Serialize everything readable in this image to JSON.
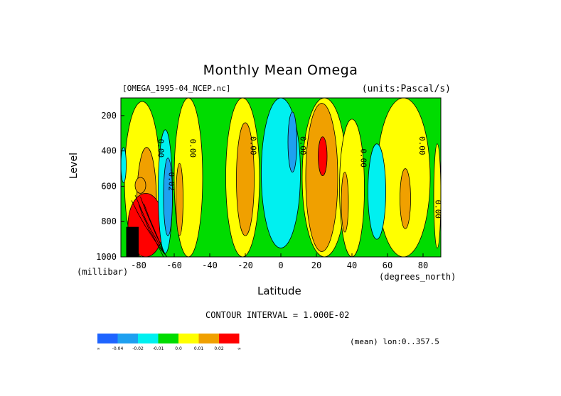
{
  "header": {
    "title": "Monthly Mean Omega",
    "file_label": "[OMEGA_1995-04_NCEP.nc]",
    "units_label": "(units:Pascal/s)"
  },
  "axes": {
    "y_title": "Level",
    "y_unit": "(millibar)",
    "x_title": "Latitude",
    "x_unit": "(degrees_north)"
  },
  "footer": {
    "contour_interval": "CONTOUR INTERVAL = 1.000E-02",
    "mean_label": "(mean) lon:0..357.5"
  },
  "chart_data": {
    "type": "heatmap",
    "title": "Monthly Mean Omega",
    "xlabel": "Latitude",
    "ylabel": "Level",
    "xlim": [
      -90,
      90
    ],
    "ylim": [
      1000,
      100
    ],
    "x_ticks": [
      -80,
      -60,
      -40,
      -20,
      0,
      20,
      40,
      60,
      80
    ],
    "y_ticks": [
      200,
      400,
      600,
      800,
      1000
    ],
    "x_tick_labels": [
      "-80",
      "-60",
      "-40",
      "-20",
      "0",
      "20",
      "40",
      "60",
      "80"
    ],
    "y_tick_labels": [
      "200",
      "400",
      "600",
      "800",
      "1000"
    ],
    "contour_labels": [
      {
        "text": "0.00",
        "x": -69,
        "y": 385
      },
      {
        "text": "0.00",
        "x": -51,
        "y": 385
      },
      {
        "text": "-0.02",
        "x": -63,
        "y": 560
      },
      {
        "text": "0.00",
        "x": -17,
        "y": 370
      },
      {
        "text": "0.00",
        "x": 11,
        "y": 370
      },
      {
        "text": "0.00",
        "x": 45,
        "y": 440
      },
      {
        "text": "0.00",
        "x": 78,
        "y": 370
      },
      {
        "text": "0.00",
        "x": 87,
        "y": 730
      }
    ],
    "colorbar": {
      "colors": [
        "#1e64ff",
        "#1ea0f0",
        "#00f0f0",
        "#00dc00",
        "#ffff00",
        "#f0a000",
        "#ff0000"
      ],
      "tick_labels": [
        "-∞",
        "-0.04",
        "-0.02",
        "-0.01",
        "0.0",
        "0.01",
        "0.02",
        "∞"
      ]
    },
    "regions": [
      {
        "level": "neutral-band",
        "color": "#00dc00",
        "x": [
          -90,
          90
        ],
        "y": [
          100,
          1000
        ]
      },
      {
        "level": "positive",
        "color": "#ffff00",
        "x": [
          -88,
          -68
        ],
        "y": [
          120,
          1000
        ]
      },
      {
        "level": "positive",
        "color": "#ffff00",
        "x": [
          -60,
          -44
        ],
        "y": [
          100,
          1000
        ]
      },
      {
        "level": "positive",
        "color": "#ffff00",
        "x": [
          -31,
          -12
        ],
        "y": [
          100,
          1000
        ]
      },
      {
        "level": "positive",
        "color": "#ffff00",
        "x": [
          12,
          37
        ],
        "y": [
          100,
          1000
        ]
      },
      {
        "level": "positive",
        "color": "#ffff00",
        "x": [
          33,
          47
        ],
        "y": [
          220,
          1000
        ]
      },
      {
        "level": "positive",
        "color": "#ffff00",
        "x": [
          54,
          84
        ],
        "y": [
          100,
          1000
        ]
      },
      {
        "level": "positive",
        "color": "#ffff00",
        "x": [
          86,
          90
        ],
        "y": [
          360,
          950
        ]
      },
      {
        "level": "0.01",
        "color": "#f0a000",
        "x": [
          -25,
          -15
        ],
        "y": [
          240,
          880
        ]
      },
      {
        "level": "0.01",
        "color": "#f0a000",
        "x": [
          -59,
          -55
        ],
        "y": [
          470,
          880
        ]
      },
      {
        "level": "0.01",
        "color": "#f0a000",
        "x": [
          14,
          32
        ],
        "y": [
          130,
          970
        ]
      },
      {
        "level": "0.01",
        "color": "#f0a000",
        "x": [
          -81,
          -70
        ],
        "y": [
          380,
          1000
        ]
      },
      {
        "level": "0.01",
        "color": "#f0a000",
        "x": [
          34,
          38
        ],
        "y": [
          520,
          860
        ]
      },
      {
        "level": "0.01",
        "color": "#f0a000",
        "x": [
          67,
          73
        ],
        "y": [
          500,
          840
        ]
      },
      {
        "level": "0.01",
        "color": "#f0a000",
        "x": [
          -82,
          -76
        ],
        "y": [
          550,
          640
        ]
      },
      {
        "level": "0.02",
        "color": "#ff0000",
        "x": [
          21,
          26
        ],
        "y": [
          320,
          540
        ]
      },
      {
        "level": "0.02",
        "color": "#ff0000",
        "x": [
          -86,
          -66
        ],
        "y": [
          640,
          1000
        ]
      },
      {
        "level": "-0.01",
        "color": "#00f0f0",
        "x": [
          -11,
          11
        ],
        "y": [
          100,
          950
        ]
      },
      {
        "level": "-0.01",
        "color": "#00f0f0",
        "x": [
          -69,
          -61
        ],
        "y": [
          280,
          980
        ]
      },
      {
        "level": "-0.01",
        "color": "#00f0f0",
        "x": [
          49,
          59
        ],
        "y": [
          360,
          900
        ]
      },
      {
        "level": "-0.02",
        "color": "#1ea0f0",
        "x": [
          4,
          9
        ],
        "y": [
          180,
          520
        ]
      },
      {
        "level": "-0.02",
        "color": "#1ea0f0",
        "x": [
          -66,
          -61
        ],
        "y": [
          440,
          880
        ]
      },
      {
        "level": "-0.01",
        "color": "#00f0f0",
        "x": [
          -90,
          -87
        ],
        "y": [
          380,
          580
        ]
      },
      {
        "level": "missing",
        "color": "#000000",
        "x": [
          -87,
          -80
        ],
        "y": [
          830,
          1000
        ]
      }
    ],
    "contour_lines": [
      {
        "x": [
          -80,
          -78,
          -76,
          -74,
          -72,
          -70,
          -68,
          -66
        ],
        "y": [
          700,
          760,
          800,
          850,
          880,
          920,
          960,
          1000
        ]
      },
      {
        "x": [
          -82,
          -79,
          -76,
          -73,
          -70,
          -67,
          -64
        ],
        "y": [
          650,
          720,
          790,
          850,
          900,
          960,
          1000
        ]
      },
      {
        "x": [
          -84,
          -80,
          -76,
          -72,
          -68,
          -64
        ],
        "y": [
          680,
          760,
          830,
          890,
          950,
          1000
        ]
      },
      {
        "x": [
          -79,
          -76,
          -73,
          -70,
          -67,
          -65
        ],
        "y": [
          660,
          740,
          810,
          880,
          940,
          990
        ]
      },
      {
        "x": [
          -77,
          -74,
          -71,
          -68,
          -66
        ],
        "y": [
          700,
          780,
          850,
          920,
          980
        ]
      }
    ]
  }
}
